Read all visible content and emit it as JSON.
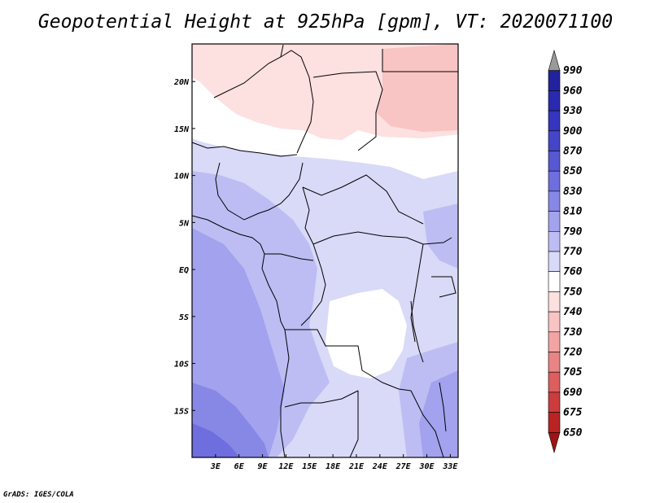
{
  "title": "Geopotential Height at 925hPa [gpm], VT: 2020071100",
  "credit": "GrADS: IGES/COLA",
  "map": {
    "variable": "Geopotential Height",
    "level": "925hPa",
    "units": "gpm",
    "valid_time": "2020071100",
    "lat_range": [
      -20,
      24
    ],
    "lon_range": [
      0,
      34
    ],
    "lat_ticks": [
      {
        "lat": 20,
        "label": "20N"
      },
      {
        "lat": 15,
        "label": "15N"
      },
      {
        "lat": 10,
        "label": "10N"
      },
      {
        "lat": 5,
        "label": "5N"
      },
      {
        "lat": 0,
        "label": "EQ"
      },
      {
        "lat": -5,
        "label": "5S"
      },
      {
        "lat": -10,
        "label": "10S"
      },
      {
        "lat": -15,
        "label": "15S"
      }
    ],
    "lon_ticks": [
      {
        "lon": 3,
        "label": "3E"
      },
      {
        "lon": 6,
        "label": "6E"
      },
      {
        "lon": 9,
        "label": "9E"
      },
      {
        "lon": 12,
        "label": "12E"
      },
      {
        "lon": 15,
        "label": "15E"
      },
      {
        "lon": 18,
        "label": "18E"
      },
      {
        "lon": 21,
        "label": "21E"
      },
      {
        "lon": 24,
        "label": "24E"
      },
      {
        "lon": 27,
        "label": "27E"
      },
      {
        "lon": 30,
        "label": "30E"
      },
      {
        "lon": 33,
        "label": "33E"
      }
    ]
  },
  "colorbar": {
    "levels": [
      "990",
      "960",
      "930",
      "900",
      "870",
      "850",
      "830",
      "810",
      "790",
      "770",
      "760",
      "750",
      "740",
      "730",
      "720",
      "705",
      "690",
      "675",
      "650"
    ],
    "colors": [
      "#1c1c8c",
      "#22229e",
      "#2a2ab0",
      "#3535bf",
      "#4545c9",
      "#5858d2",
      "#6e6ede",
      "#8787e6",
      "#a2a2ee",
      "#bdbdf4",
      "#d9d9f8",
      "#ffffff",
      "#fde0e0",
      "#f8c4c4",
      "#f2a4a4",
      "#e88484",
      "#dc5e5e",
      "#cc3c3c",
      "#b82424",
      "#a01414"
    ]
  }
}
